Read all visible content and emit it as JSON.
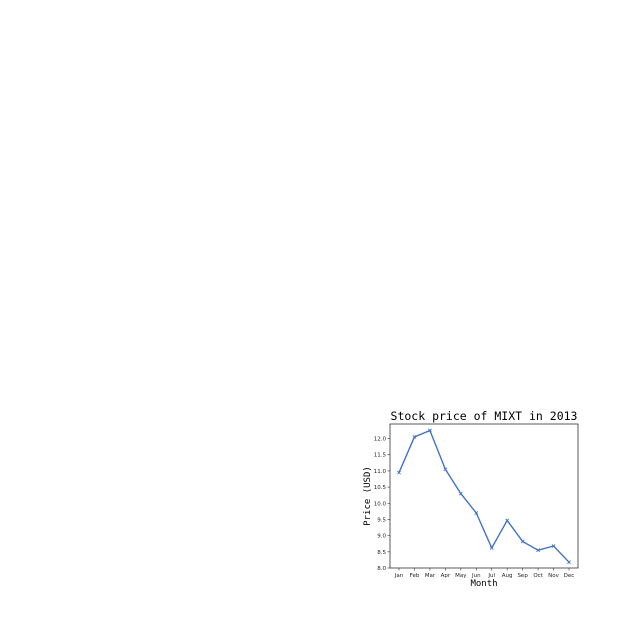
{
  "chart_data": {
    "type": "line",
    "title": "Stock price of MIXT in 2013",
    "xlabel": "Month",
    "ylabel": "Price (USD)",
    "categories": [
      "Jan",
      "Feb",
      "Mar",
      "Apr",
      "May",
      "Jun",
      "Jul",
      "Aug",
      "Sep",
      "Oct",
      "Nov",
      "Dec"
    ],
    "yticks": [
      "8.0",
      "8.5",
      "9.0",
      "9.5",
      "10.0",
      "10.5",
      "11.0",
      "11.5",
      "12.0"
    ],
    "ylim": [
      8.0,
      12.45
    ],
    "grid": false,
    "series": [
      {
        "values": [
          10.95,
          12.05,
          12.25,
          11.05,
          10.3,
          9.7,
          8.62,
          9.47,
          8.82,
          8.55,
          8.68,
          8.18
        ],
        "color": "#4472c4",
        "marker": "x"
      }
    ]
  }
}
